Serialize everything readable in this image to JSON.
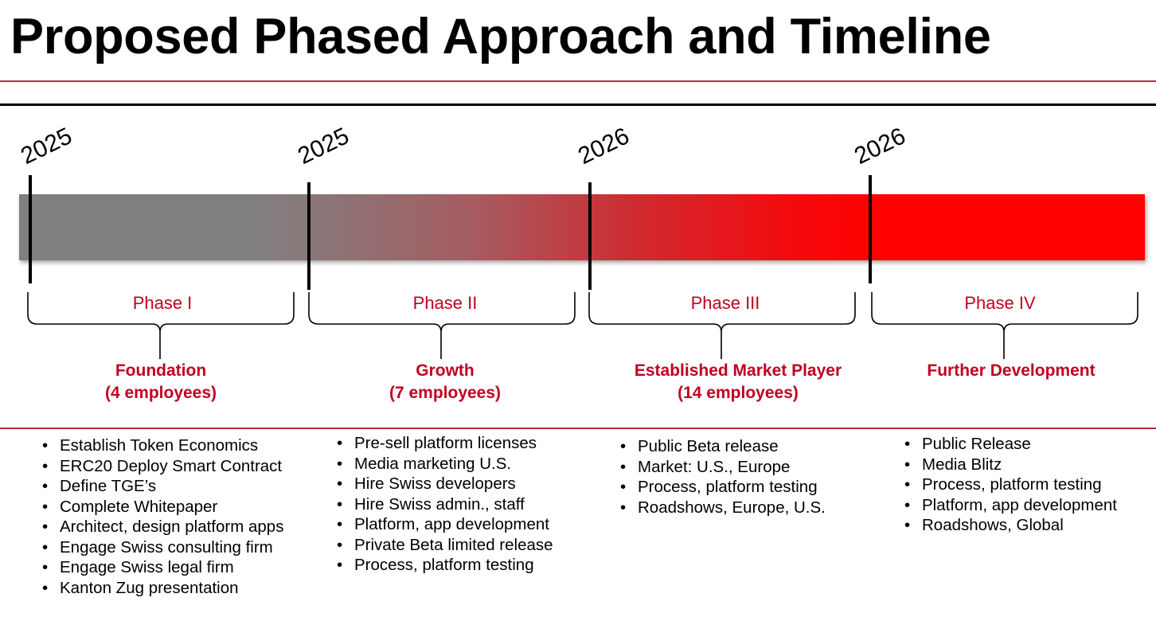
{
  "title": "Proposed Phased Approach and Timeline",
  "colors": {
    "accent_red": "#c00020",
    "rule_red": "#c0272d",
    "bar_start": "#808080",
    "bar_end": "#ff0000"
  },
  "years": [
    "2025",
    "2025",
    "2026",
    "2026"
  ],
  "phases": [
    {
      "label": "Phase I",
      "name": "Foundation",
      "employees": "(4 employees)",
      "items": [
        "Establish Token Economics",
        "ERC20 Deploy Smart Contract",
        "Define TGE’s",
        "Complete Whitepaper",
        "Architect, design platform apps",
        "Engage Swiss consulting firm",
        "Engage Swiss legal firm",
        "Kanton Zug presentation"
      ]
    },
    {
      "label": "Phase II",
      "name": "Growth",
      "employees": "(7 employees)",
      "items": [
        "Pre-sell platform licenses",
        "Media marketing U.S.",
        "Hire Swiss developers",
        "Hire Swiss admin., staff",
        "Platform, app development",
        "Private Beta limited release",
        "Process, platform testing"
      ]
    },
    {
      "label": "Phase III",
      "name": "Established Market Player",
      "employees": "(14 employees)",
      "items": [
        "Public Beta release",
        "Market:  U.S., Europe",
        "Process, platform testing",
        "Roadshows, Europe, U.S."
      ]
    },
    {
      "label": "Phase IV",
      "name": "Further Development",
      "employees": "",
      "items": [
        "Public Release",
        "Media Blitz",
        "Process, platform testing",
        "Platform, app development",
        "Roadshows, Global"
      ]
    }
  ]
}
